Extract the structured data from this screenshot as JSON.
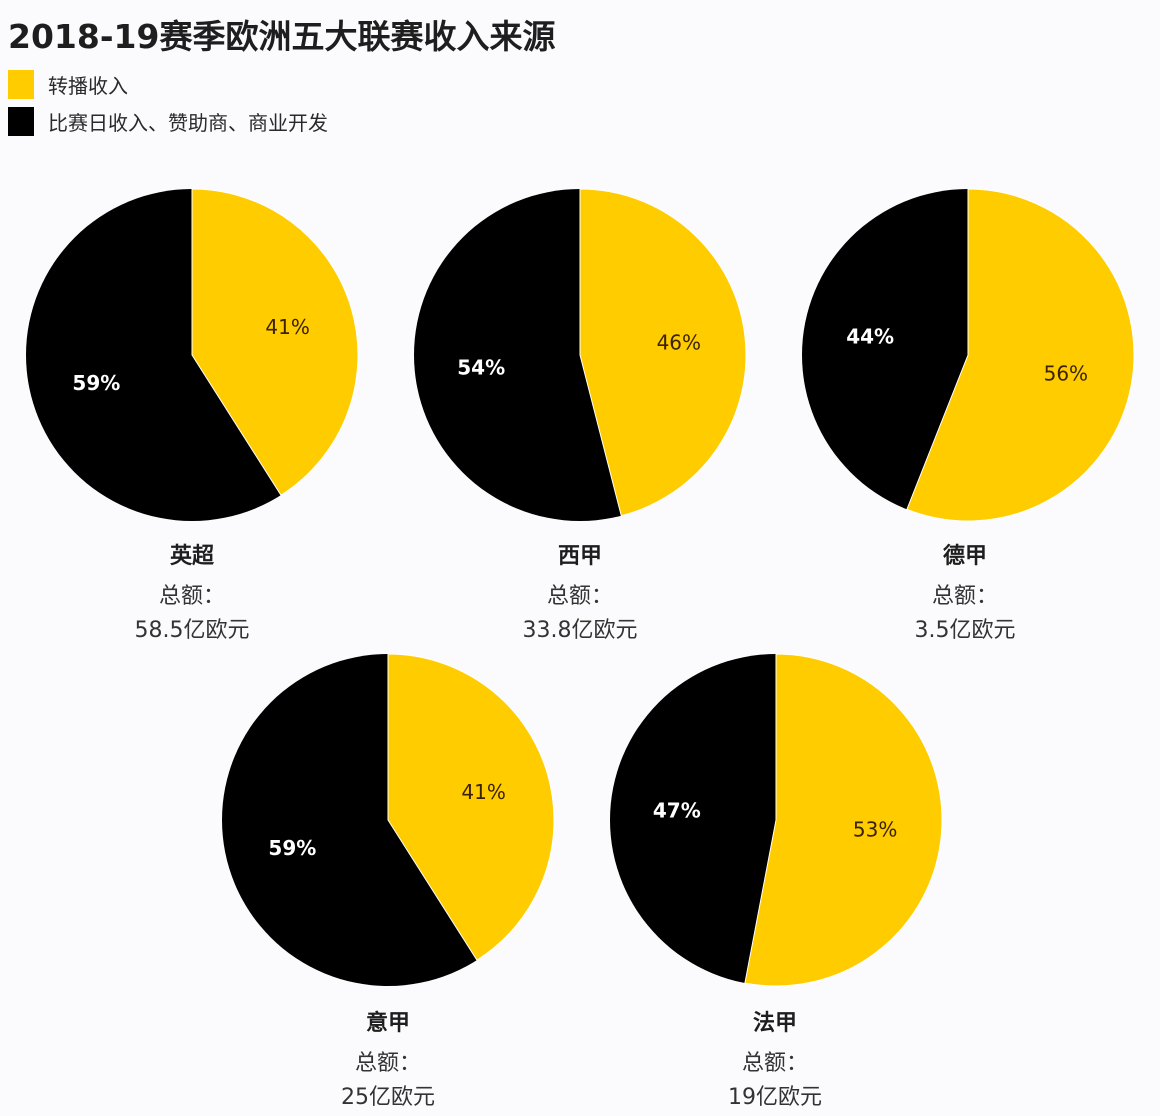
{
  "title": "2018-19赛季欧洲五大联赛收入来源",
  "legend": [
    {
      "label": "转播收入",
      "color": "#FFCC00"
    },
    {
      "label": "比赛日收入、赞助商、商业开发",
      "color": "#000000"
    }
  ],
  "total_label": "总额：",
  "leagues": [
    {
      "name": "英超",
      "total": "58.5亿欧元",
      "broadcast_pct": 41,
      "other_pct": 59,
      "broadcast_label": "41%",
      "other_label": "59%"
    },
    {
      "name": "西甲",
      "total": "33.8亿欧元",
      "broadcast_pct": 46,
      "other_pct": 54,
      "broadcast_label": "46%",
      "other_label": "54%"
    },
    {
      "name": "德甲",
      "total": "3.5亿欧元",
      "broadcast_pct": 56,
      "other_pct": 44,
      "broadcast_label": "56%",
      "other_label": "44%"
    },
    {
      "name": "意甲",
      "total": "25亿欧元",
      "broadcast_pct": 41,
      "other_pct": 59,
      "broadcast_label": "41%",
      "other_label": "59%"
    },
    {
      "name": "法甲",
      "total": "19亿欧元",
      "broadcast_pct": 53,
      "other_pct": 47,
      "broadcast_label": "53%",
      "other_label": "47%"
    }
  ],
  "chart_data": [
    {
      "type": "pie",
      "title": "英超",
      "subtitle": "总额：58.5亿欧元",
      "categories": [
        "转播收入",
        "比赛日收入、赞助商、商业开发"
      ],
      "values": [
        41,
        59
      ],
      "colors": [
        "#FFCC00",
        "#000000"
      ],
      "legend_position": "top-left"
    },
    {
      "type": "pie",
      "title": "西甲",
      "subtitle": "总额：33.8亿欧元",
      "categories": [
        "转播收入",
        "比赛日收入、赞助商、商业开发"
      ],
      "values": [
        46,
        54
      ],
      "colors": [
        "#FFCC00",
        "#000000"
      ],
      "legend_position": "top-left"
    },
    {
      "type": "pie",
      "title": "德甲",
      "subtitle": "总额：3.5亿欧元",
      "categories": [
        "转播收入",
        "比赛日收入、赞助商、商业开发"
      ],
      "values": [
        56,
        44
      ],
      "colors": [
        "#FFCC00",
        "#000000"
      ],
      "legend_position": "top-left"
    },
    {
      "type": "pie",
      "title": "意甲",
      "subtitle": "总额：25亿欧元",
      "categories": [
        "转播收入",
        "比赛日收入、赞助商、商业开发"
      ],
      "values": [
        41,
        59
      ],
      "colors": [
        "#FFCC00",
        "#000000"
      ],
      "legend_position": "top-left"
    },
    {
      "type": "pie",
      "title": "法甲",
      "subtitle": "总额：19亿欧元",
      "categories": [
        "转播收入",
        "比赛日收入、赞助商、商业开发"
      ],
      "values": [
        53,
        47
      ],
      "colors": [
        "#FFCC00",
        "#000000"
      ],
      "legend_position": "top-left"
    }
  ]
}
